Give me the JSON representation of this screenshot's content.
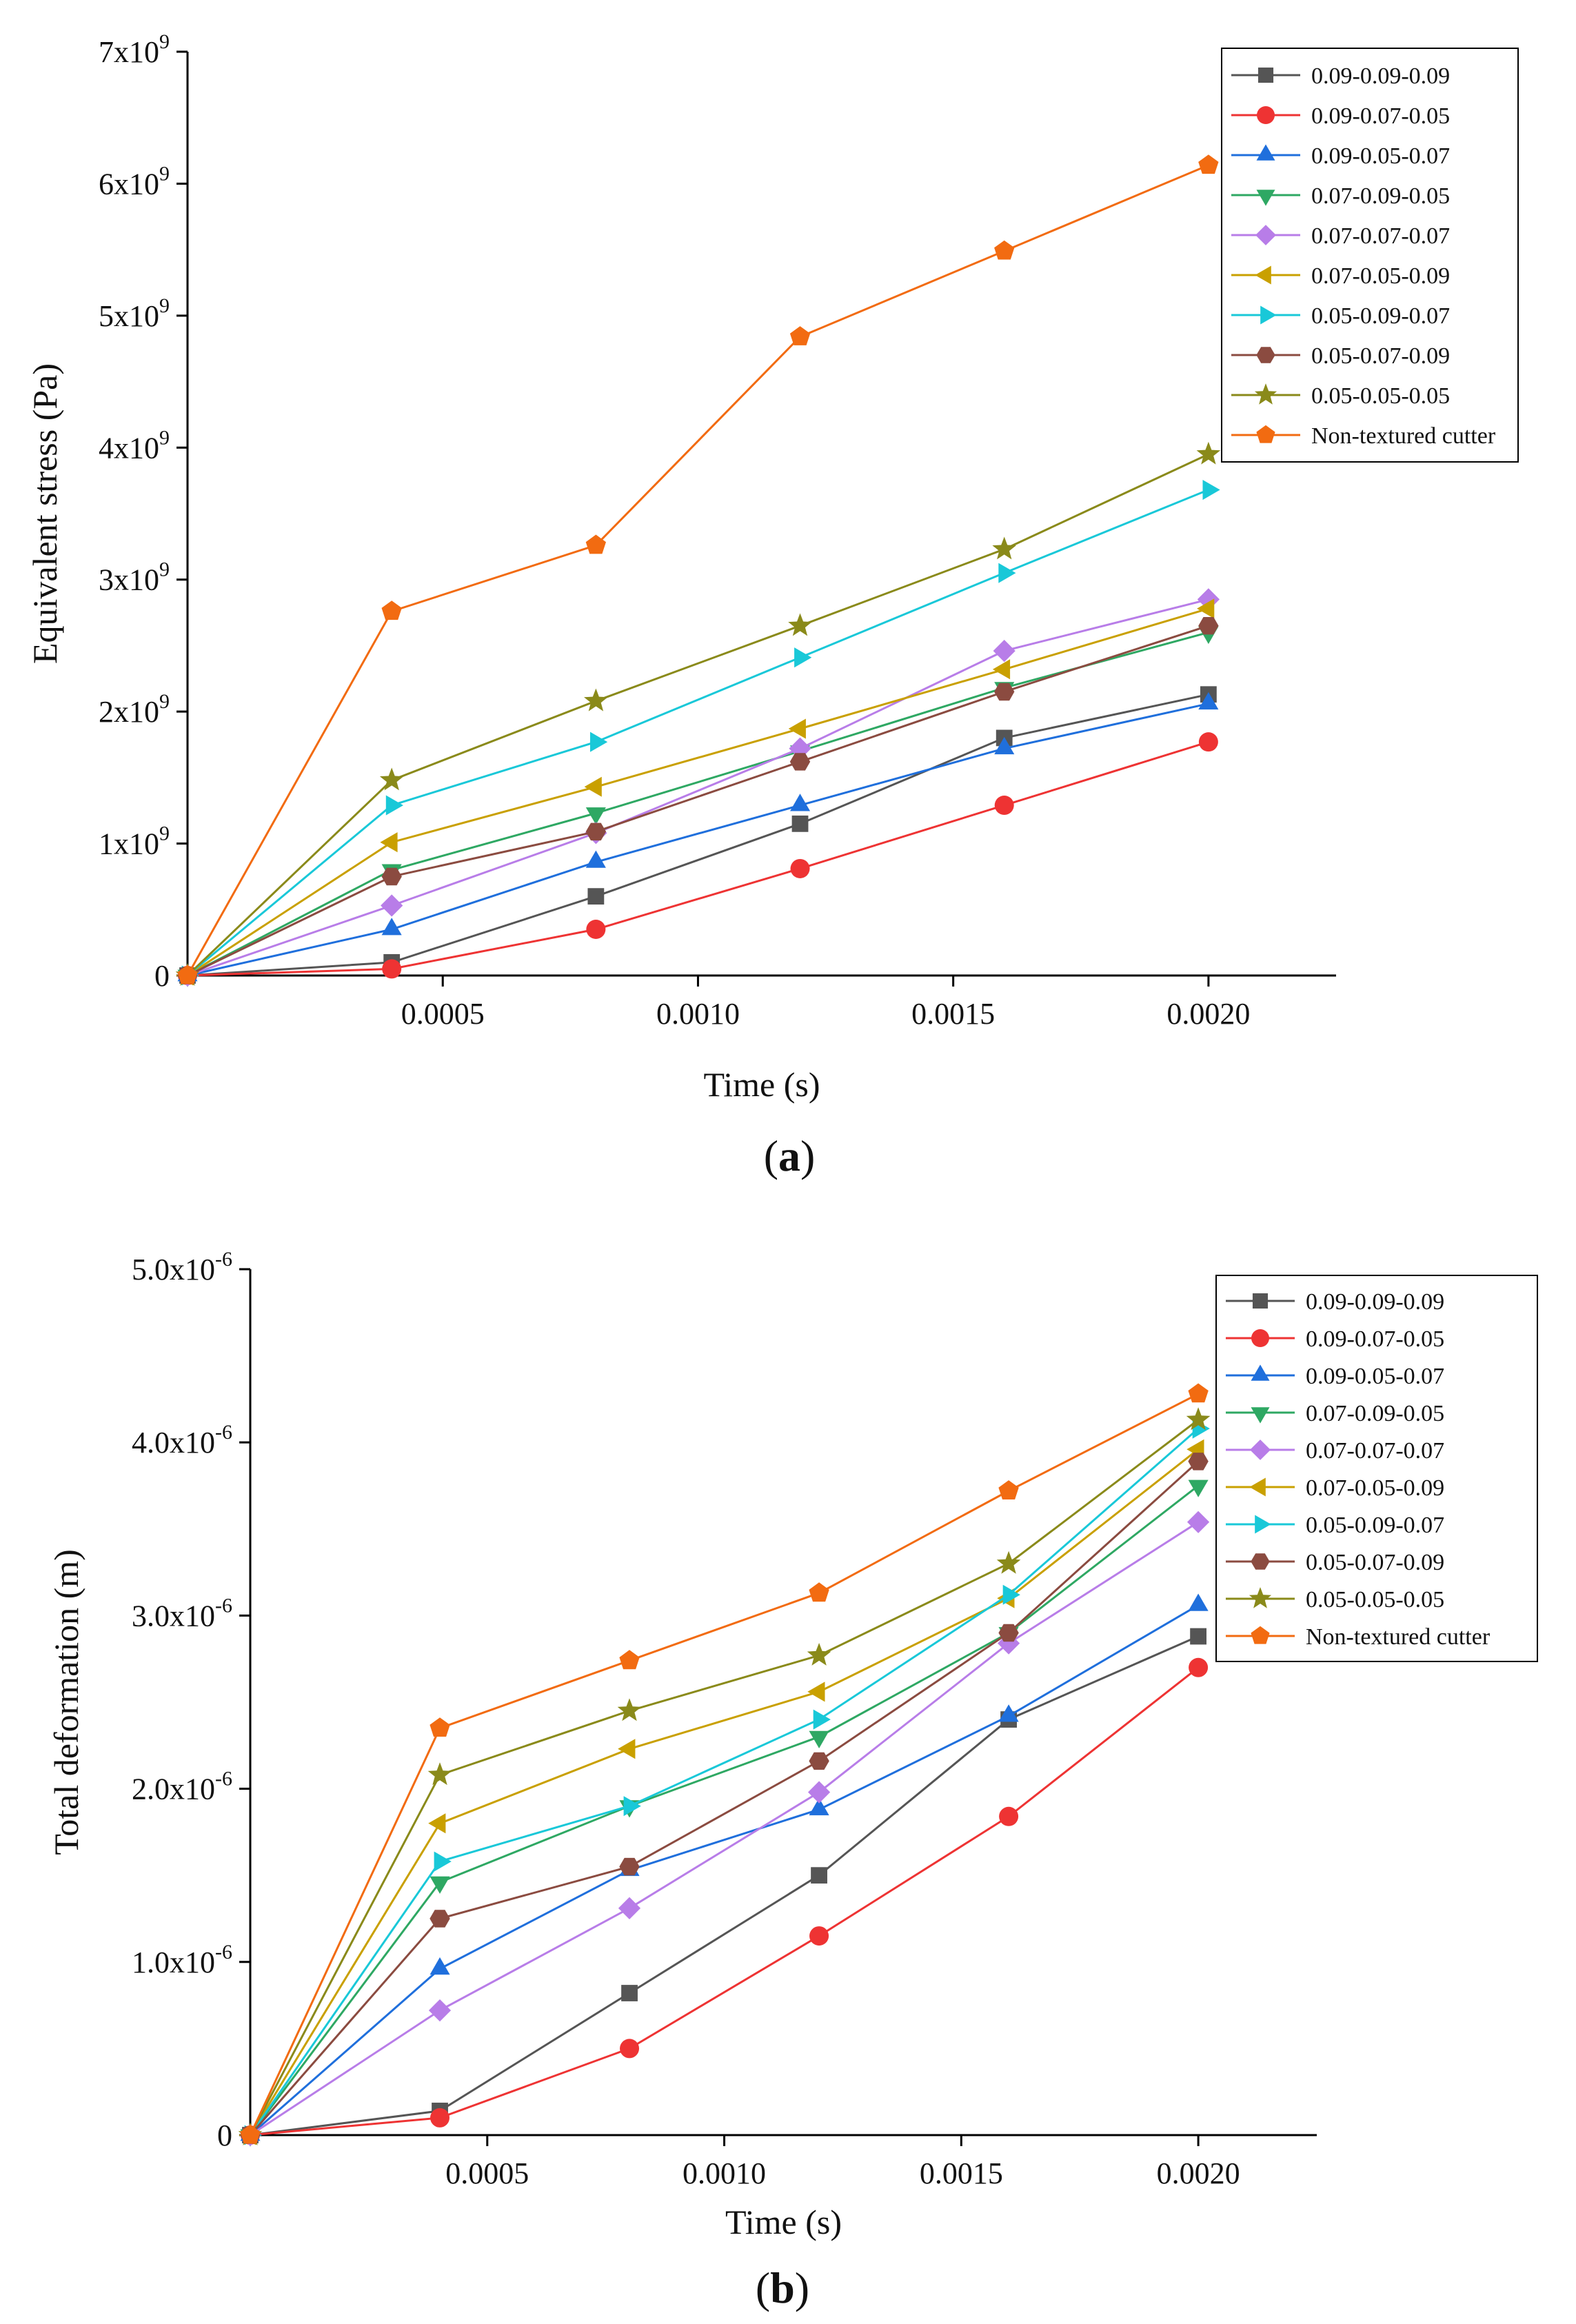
{
  "chart_data": [
    {
      "type": "line",
      "panel_label": "a",
      "xlabel": "Time (s)",
      "ylabel": "Equivalent stress (Pa)",
      "xlim": [
        0,
        0.00225
      ],
      "ylim": [
        0,
        7000000000
      ],
      "x_ticks": [
        "0.0005",
        "0.0010",
        "0.0015",
        "0.0020"
      ],
      "x_tick_values": [
        0.0005,
        0.001,
        0.0015,
        0.002
      ],
      "y_ticks": [
        "0",
        "1x10",
        "2x10",
        "3x10",
        "4x10",
        "5x10",
        "6x10",
        "7x10"
      ],
      "y_tick_exponents": [
        "",
        "9",
        "9",
        "9",
        "9",
        "9",
        "9",
        "9"
      ],
      "y_tick_values": [
        0,
        1000000000,
        2000000000,
        3000000000,
        4000000000,
        5000000000,
        6000000000,
        7000000000
      ],
      "legend_position": "top-right",
      "x": [
        0,
        0.0004,
        0.0008,
        0.0012,
        0.0016,
        0.002
      ],
      "series": [
        {
          "name": "0.09-0.09-0.09",
          "color": "#555555",
          "marker": "square",
          "values": [
            0,
            100000000,
            600000000,
            1150000000,
            1800000000,
            2130000000
          ]
        },
        {
          "name": "0.09-0.07-0.05",
          "color": "#ee3333",
          "marker": "circle",
          "values": [
            0,
            50000000,
            350000000,
            810000000,
            1290000000,
            1770000000
          ]
        },
        {
          "name": "0.09-0.05-0.07",
          "color": "#1f6fdc",
          "marker": "triangle-up",
          "values": [
            0,
            350000000,
            860000000,
            1290000000,
            1720000000,
            2060000000
          ]
        },
        {
          "name": "0.07-0.09-0.05",
          "color": "#2ea863",
          "marker": "triangle-down",
          "values": [
            0,
            800000000,
            1230000000,
            1700000000,
            2180000000,
            2600000000
          ]
        },
        {
          "name": "0.07-0.07-0.07",
          "color": "#b87de8",
          "marker": "diamond",
          "values": [
            0,
            530000000,
            1080000000,
            1720000000,
            2460000000,
            2850000000
          ]
        },
        {
          "name": "0.07-0.05-0.09",
          "color": "#c9a000",
          "marker": "triangle-left",
          "values": [
            0,
            1010000000,
            1430000000,
            1870000000,
            2320000000,
            2780000000
          ]
        },
        {
          "name": "0.05-0.09-0.07",
          "color": "#19c8d8",
          "marker": "triangle-right",
          "values": [
            0,
            1290000000,
            1770000000,
            2410000000,
            3050000000,
            3680000000
          ]
        },
        {
          "name": "0.05-0.07-0.09",
          "color": "#8b4b40",
          "marker": "hexagon",
          "values": [
            0,
            750000000,
            1090000000,
            1620000000,
            2150000000,
            2650000000
          ]
        },
        {
          "name": "0.05-0.05-0.05",
          "color": "#8a8a1a",
          "marker": "star",
          "values": [
            0,
            1480000000,
            2080000000,
            2650000000,
            3230000000,
            3950000000
          ]
        },
        {
          "name": "Non-textured cutter",
          "color": "#f26b11",
          "marker": "pentagon",
          "values": [
            0,
            2760000000,
            3260000000,
            4840000000,
            5490000000,
            6140000000
          ]
        }
      ]
    },
    {
      "type": "line",
      "panel_label": "b",
      "xlabel": "Time (s)",
      "ylabel": "Total deformation (m)",
      "xlim": [
        0,
        0.00225
      ],
      "ylim": [
        0,
        5e-06
      ],
      "x_ticks": [
        "0.0005",
        "0.0010",
        "0.0015",
        "0.0020"
      ],
      "x_tick_values": [
        0.0005,
        0.001,
        0.0015,
        0.002
      ],
      "y_ticks": [
        "0",
        "1.0x10",
        "2.0x10",
        "3.0x10",
        "4.0x10",
        "5.0x10"
      ],
      "y_tick_exponents": [
        "",
        "-6",
        "-6",
        "-6",
        "-6",
        "-6"
      ],
      "y_tick_values": [
        0,
        1e-06,
        2e-06,
        3e-06,
        4e-06,
        5e-06
      ],
      "legend_position": "top-right",
      "x": [
        0,
        0.0004,
        0.0008,
        0.0012,
        0.0016,
        0.002
      ],
      "series": [
        {
          "name": "0.09-0.09-0.09",
          "color": "#555555",
          "marker": "square",
          "values": [
            0,
            1.4e-07,
            8.2e-07,
            1.5e-06,
            2.4e-06,
            2.88e-06
          ]
        },
        {
          "name": "0.09-0.07-0.05",
          "color": "#ee3333",
          "marker": "circle",
          "values": [
            0,
            1e-07,
            5e-07,
            1.15e-06,
            1.84e-06,
            2.7e-06
          ]
        },
        {
          "name": "0.09-0.05-0.07",
          "color": "#1f6fdc",
          "marker": "triangle-up",
          "values": [
            0,
            9.6e-07,
            1.53e-06,
            1.88e-06,
            2.42e-06,
            3.06e-06
          ]
        },
        {
          "name": "0.07-0.09-0.05",
          "color": "#2ea863",
          "marker": "triangle-down",
          "values": [
            0,
            1.46e-06,
            1.9e-06,
            2.3e-06,
            2.9e-06,
            3.75e-06
          ]
        },
        {
          "name": "0.07-0.07-0.07",
          "color": "#b87de8",
          "marker": "diamond",
          "values": [
            0,
            7.2e-07,
            1.31e-06,
            1.98e-06,
            2.84e-06,
            3.54e-06
          ]
        },
        {
          "name": "0.07-0.05-0.09",
          "color": "#c9a000",
          "marker": "triangle-left",
          "values": [
            0,
            1.8e-06,
            2.23e-06,
            2.56e-06,
            3.1e-06,
            3.96e-06
          ]
        },
        {
          "name": "0.05-0.09-0.07",
          "color": "#19c8d8",
          "marker": "triangle-right",
          "values": [
            0,
            1.58e-06,
            1.9e-06,
            2.4e-06,
            3.12e-06,
            4.08e-06
          ]
        },
        {
          "name": "0.05-0.07-0.09",
          "color": "#8b4b40",
          "marker": "hexagon",
          "values": [
            0,
            1.25e-06,
            1.55e-06,
            2.16e-06,
            2.9e-06,
            3.89e-06
          ]
        },
        {
          "name": "0.05-0.05-0.05",
          "color": "#8a8a1a",
          "marker": "star",
          "values": [
            0,
            2.08e-06,
            2.45e-06,
            2.77e-06,
            3.3e-06,
            4.13e-06
          ]
        },
        {
          "name": "Non-textured cutter",
          "color": "#f26b11",
          "marker": "pentagon",
          "values": [
            0,
            2.35e-06,
            2.74e-06,
            3.13e-06,
            3.72e-06,
            4.28e-06
          ]
        }
      ]
    }
  ]
}
